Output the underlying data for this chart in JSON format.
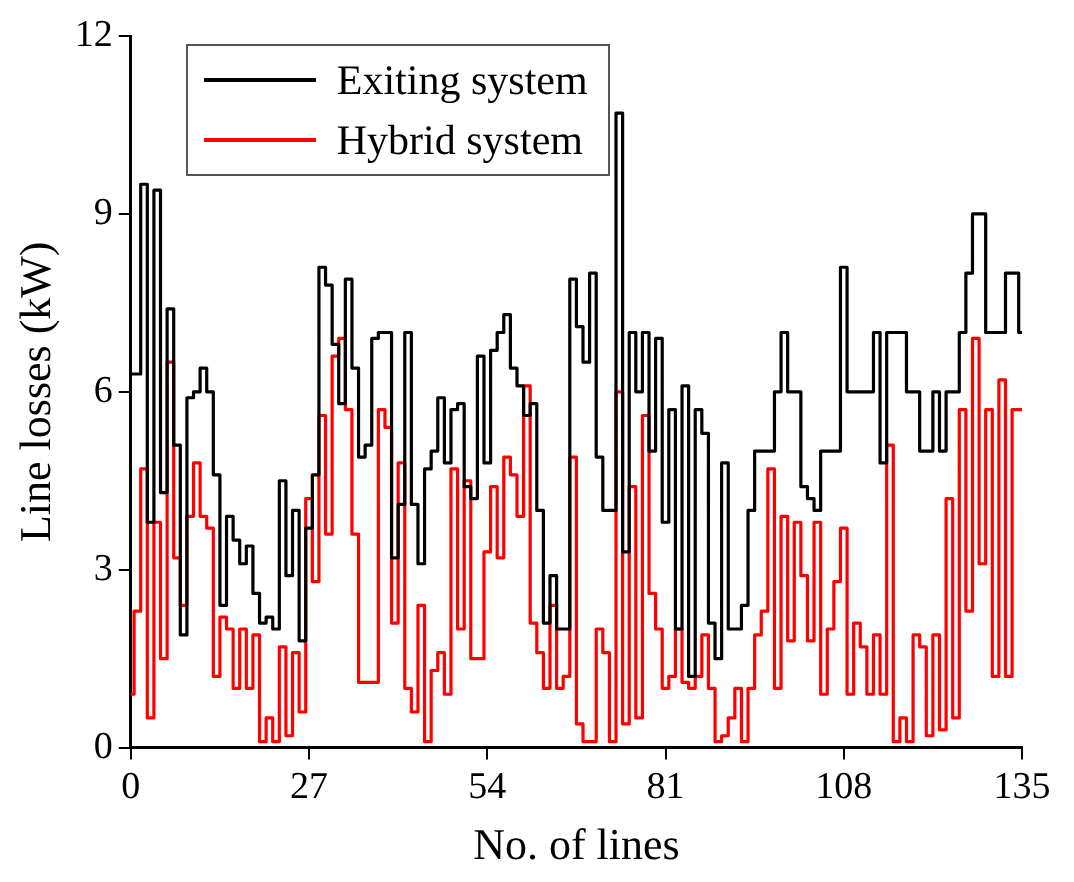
{
  "chart_data": {
    "type": "step",
    "xlabel": "No. of lines",
    "ylabel": "Line losses (kW)",
    "x": [
      0,
      1,
      2,
      3,
      4,
      5,
      6,
      7,
      8,
      9,
      10,
      11,
      12,
      13,
      14,
      15,
      16,
      17,
      18,
      19,
      20,
      21,
      22,
      23,
      24,
      25,
      26,
      27,
      28,
      29,
      30,
      31,
      32,
      33,
      34,
      35,
      36,
      37,
      38,
      39,
      40,
      41,
      42,
      43,
      44,
      45,
      46,
      47,
      48,
      49,
      50,
      51,
      52,
      53,
      54,
      55,
      56,
      57,
      58,
      59,
      60,
      61,
      62,
      63,
      64,
      65,
      66,
      67,
      68,
      69,
      70,
      71,
      72,
      73,
      74,
      75,
      76,
      77,
      78,
      79,
      80,
      81,
      82,
      83,
      84,
      85,
      86,
      87,
      88,
      89,
      90,
      91,
      92,
      93,
      94,
      95,
      96,
      97,
      98,
      99,
      100,
      101,
      102,
      103,
      104,
      105,
      106,
      107,
      108,
      109,
      110,
      111,
      112,
      113,
      114,
      115,
      116,
      117,
      118,
      119,
      120,
      121,
      122,
      123,
      124,
      125,
      126,
      127,
      128,
      129,
      130,
      131,
      132,
      133,
      134,
      135
    ],
    "series": [
      {
        "name": "Exiting system",
        "color": "#000000",
        "values": [
          6.3,
          6.3,
          9.5,
          3.8,
          9.4,
          4.3,
          7.4,
          5.1,
          1.9,
          5.9,
          6.0,
          6.4,
          6.0,
          4.6,
          2.4,
          3.9,
          3.5,
          3.1,
          3.4,
          2.6,
          2.1,
          2.2,
          2.0,
          4.5,
          2.9,
          4.0,
          1.8,
          3.7,
          4.6,
          8.1,
          7.8,
          6.8,
          5.8,
          7.9,
          6.4,
          4.9,
          5.1,
          6.9,
          7.0,
          7.0,
          3.2,
          4.1,
          7.0,
          4.1,
          3.1,
          4.7,
          5.0,
          5.9,
          4.8,
          5.7,
          5.8,
          4.4,
          4.2,
          6.6,
          4.8,
          6.7,
          7.0,
          7.3,
          6.4,
          6.1,
          5.6,
          5.8,
          4.0,
          2.1,
          2.9,
          2.0,
          2.0,
          7.9,
          7.1,
          6.5,
          8.0,
          4.9,
          4.0,
          4.0,
          10.7,
          3.3,
          7.0,
          6.0,
          7.0,
          5.0,
          6.9,
          3.8,
          5.7,
          2.0,
          6.1,
          1.2,
          5.7,
          5.3,
          2.1,
          1.5,
          4.8,
          2.0,
          2.0,
          2.4,
          4.0,
          5.0,
          5.0,
          5.0,
          6.0,
          7.0,
          6.0,
          6.0,
          4.4,
          4.2,
          4.0,
          5.0,
          5.0,
          5.0,
          8.1,
          6.0,
          6.0,
          6.0,
          6.0,
          7.0,
          4.8,
          7.0,
          7.0,
          7.0,
          6.0,
          6.0,
          5.0,
          5.0,
          6.0,
          5.0,
          6.0,
          6.0,
          7.0,
          8.0,
          9.0,
          9.0,
          7.0,
          7.0,
          7.0,
          8.0,
          8.0,
          7.0
        ]
      },
      {
        "name": "Hybrid system",
        "color": "#ff0000",
        "values": [
          0.9,
          2.3,
          4.7,
          0.5,
          3.8,
          1.5,
          6.5,
          3.2,
          2.4,
          3.9,
          4.8,
          3.9,
          3.7,
          1.2,
          2.2,
          2.0,
          1.0,
          2.0,
          1.0,
          1.9,
          0.1,
          0.5,
          0.1,
          1.7,
          0.2,
          1.6,
          0.6,
          4.2,
          2.8,
          5.6,
          3.6,
          6.6,
          6.9,
          5.7,
          3.6,
          1.1,
          1.1,
          1.1,
          5.7,
          5.4,
          2.1,
          4.8,
          1.0,
          0.6,
          2.4,
          0.1,
          1.3,
          1.6,
          0.9,
          4.7,
          2.0,
          4.5,
          1.5,
          1.5,
          3.3,
          4.4,
          3.2,
          4.9,
          4.6,
          3.9,
          6.1,
          2.1,
          1.6,
          1.0,
          2.4,
          1.0,
          1.2,
          4.9,
          0.4,
          0.1,
          0.1,
          2.0,
          1.6,
          0.1,
          6.0,
          0.4,
          4.4,
          0.5,
          5.6,
          2.6,
          2.0,
          1.0,
          1.2,
          2.0,
          1.1,
          1.0,
          1.2,
          1.9,
          1.0,
          0.1,
          0.2,
          0.5,
          1.0,
          0.1,
          1.0,
          1.9,
          2.3,
          4.7,
          1.0,
          3.9,
          1.8,
          3.8,
          2.9,
          1.8,
          3.8,
          0.9,
          2.0,
          2.8,
          3.7,
          0.9,
          2.1,
          1.7,
          0.9,
          1.9,
          0.9,
          5.1,
          0.1,
          0.5,
          0.1,
          1.9,
          1.7,
          0.2,
          1.9,
          0.3,
          4.2,
          0.5,
          5.7,
          2.3,
          6.9,
          3.1,
          5.7,
          1.2,
          6.2,
          1.2,
          5.7,
          5.7
        ]
      }
    ],
    "xlim": [
      0,
      135
    ],
    "xticks": [
      0,
      27,
      54,
      81,
      108,
      135
    ],
    "ylim": [
      0,
      12
    ],
    "yticks": [
      0,
      3,
      6,
      9,
      12
    ],
    "grid": false,
    "legend": "top left"
  }
}
